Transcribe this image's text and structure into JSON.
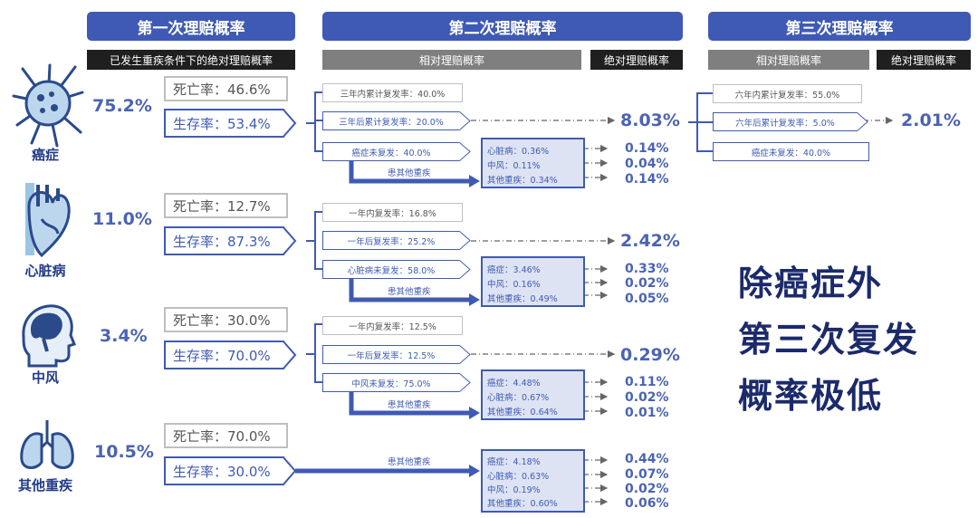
{
  "headers": {
    "first": "第一次理赔概率",
    "second": "第二次理赔概率",
    "third": "第三次理赔概率",
    "first_sub": "已发生重疾条件下的绝对理赔概率",
    "second_rel": "相对理赔概率",
    "second_abs": "绝对理赔概率",
    "third_rel": "相对理赔概率",
    "third_abs": "绝对理赔概率"
  },
  "diseases": [
    {
      "name": "癌症",
      "prob": "75.2%",
      "death": "死亡率：46.6%",
      "survive": "生存率：53.4%",
      "second": [
        "三年内累计复发率：40.0%",
        "三年后累计复发率：20.0%",
        "癌症未复发：40.0%"
      ],
      "second_result": "8.03%",
      "note": "患其他重疾",
      "sub": [
        "心脏病：0.36%",
        "中风：0.11%",
        "其他重疾：0.34%"
      ],
      "sub_results": [
        "0.14%",
        "0.04%",
        "0.14%"
      ]
    },
    {
      "name": "心脏病",
      "prob": "11.0%",
      "death": "死亡率：12.7%",
      "survive": "生存率：87.3%",
      "second": [
        "一年内复发率：16.8%",
        "一年后复发率：25.2%",
        "心脏病未复发：58.0%"
      ],
      "second_result": "2.42%",
      "note": "患其他重疾",
      "sub": [
        "癌症：3.46%",
        "中风：0.16%",
        "其他重疾：0.49%"
      ],
      "sub_results": [
        "0.33%",
        "0.02%",
        "0.05%"
      ]
    },
    {
      "name": "中风",
      "prob": "3.4%",
      "death": "死亡率：30.0%",
      "survive": "生存率：70.0%",
      "second": [
        "一年内复发率：12.5%",
        "一年后复发率：12.5%",
        "中风未复发：75.0%"
      ],
      "second_result": "0.29%",
      "note": "患其他重疾",
      "sub": [
        "癌症：4.48%",
        "心脏病：0.67%",
        "其他重疾：0.64%"
      ],
      "sub_results": [
        "0.11%",
        "0.02%",
        "0.01%"
      ]
    },
    {
      "name": "其他重疾",
      "prob": "10.5%",
      "death": "死亡率：70.0%",
      "survive": "生存率：30.0%",
      "note": "患其他重疾",
      "sub": [
        "癌症：4.18%",
        "心脏病：0.63%",
        "中风：0.19%",
        "其他重疾：0.60%"
      ],
      "sub_results": [
        "0.44%",
        "0.07%",
        "0.02%",
        "0.06%"
      ]
    }
  ],
  "third": {
    "items": [
      "六年内累计复发率：55.0%",
      "六年后累计复发率：5.0%",
      "癌症未复发：40.0%"
    ],
    "result": "2.01%"
  },
  "statement": [
    "除癌症外",
    "第三次复发",
    "概率极低"
  ],
  "colors": {
    "brand": "#3f5ab4",
    "dark": "#1b2a6b",
    "light_fill": "#dde3f3"
  }
}
